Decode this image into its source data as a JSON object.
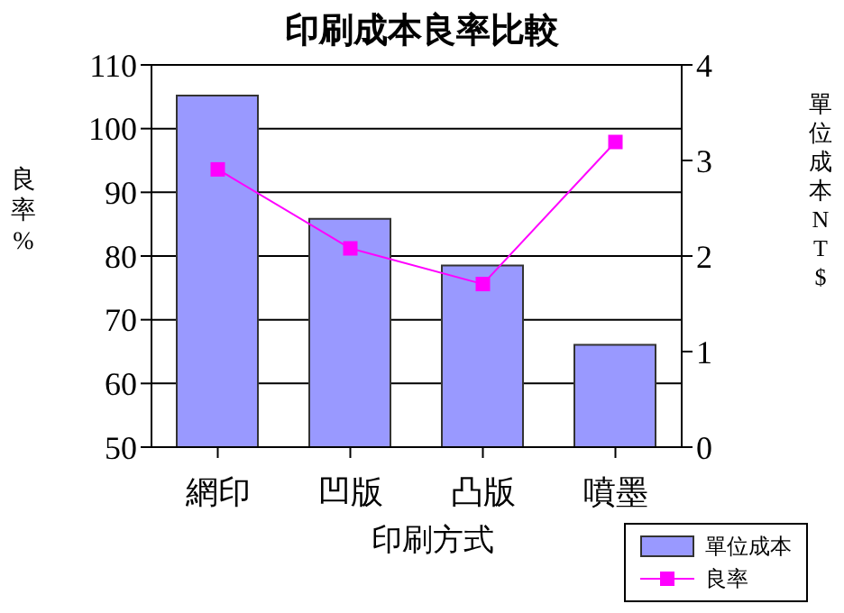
{
  "chart_data": {
    "type": "bar",
    "title": "印刷成本良率比較",
    "xlabel": "印刷方式",
    "ylabel": "良率%",
    "y2label": "單位成本NT$",
    "categories": [
      "網印",
      "凹版",
      "凸版",
      "噴墨"
    ],
    "series": [
      {
        "name": "單位成本",
        "axis": "y2",
        "color": "#9999ff",
        "values": [
          3.68,
          2.39,
          1.9,
          1.07
        ]
      },
      {
        "name": "良率",
        "type": "line",
        "axis": "y",
        "color": "#ff00ff",
        "values": [
          93.6,
          81.2,
          75.6,
          97.9
        ]
      }
    ],
    "ylim": [
      50,
      110
    ],
    "yticks": [
      50,
      60,
      70,
      80,
      90,
      100,
      110
    ],
    "y2lim": [
      0,
      4
    ],
    "y2ticks": [
      0,
      1,
      2,
      3,
      4
    ],
    "grid": "y",
    "legend": "bottom right",
    "marker": "square",
    "line_style": "solid"
  }
}
